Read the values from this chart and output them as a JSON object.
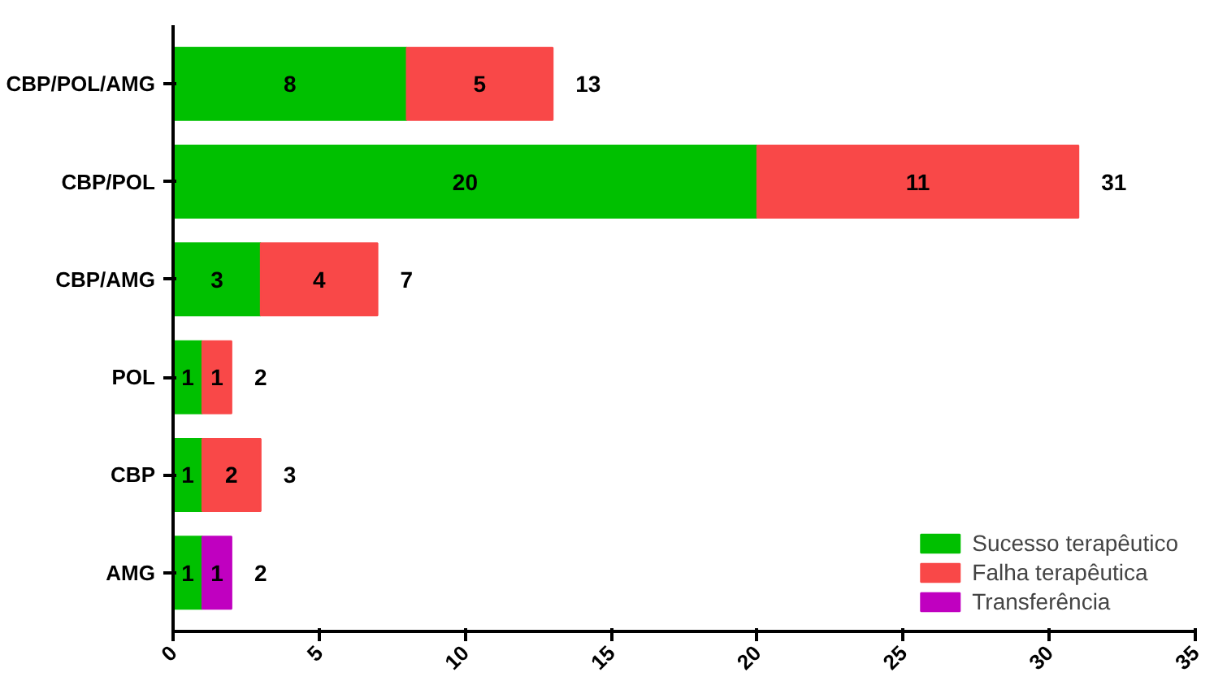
{
  "chart_data": {
    "type": "bar",
    "orientation": "horizontal",
    "stacked": true,
    "categories": [
      "CBP/POL/AMG",
      "CBP/POL",
      "CBP/AMG",
      "POL",
      "CBP",
      "AMG"
    ],
    "series": [
      {
        "name": "Sucesso terapêutico",
        "color": "#00c000",
        "values": [
          8,
          20,
          3,
          1,
          1,
          1
        ]
      },
      {
        "name": "Falha terapêutica",
        "color": "#f94848",
        "values": [
          5,
          11,
          4,
          1,
          2,
          null
        ]
      },
      {
        "name": "Transferência",
        "color": "#c000c0",
        "values": [
          null,
          null,
          null,
          null,
          null,
          1
        ]
      }
    ],
    "totals": [
      "13",
      "31",
      "7",
      "2",
      "3",
      "2"
    ],
    "data_labels": true,
    "xlim": [
      0,
      35
    ],
    "xticks": [
      0,
      5,
      10,
      15,
      20,
      25,
      30,
      35
    ],
    "grid": false,
    "legend": "bottom right"
  }
}
